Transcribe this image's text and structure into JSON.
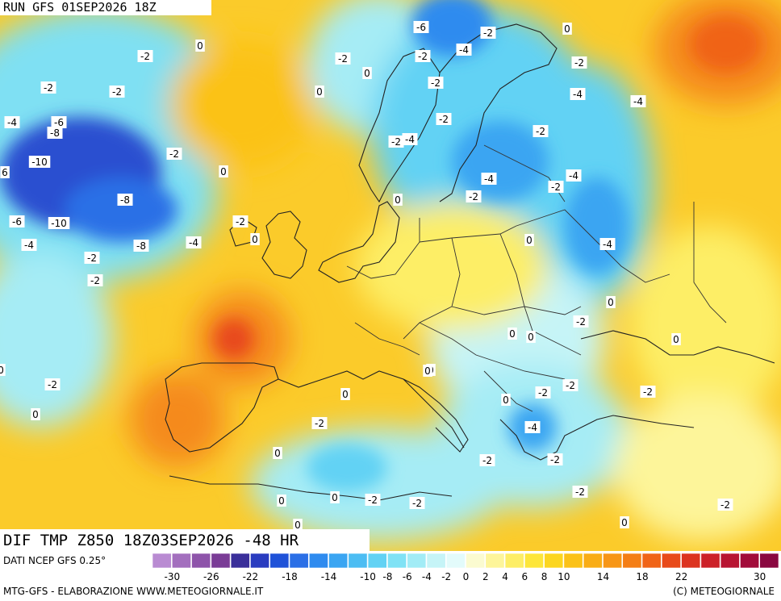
{
  "header": {
    "run": "RUN GFS 01SEP2026 18Z",
    "field": "DIF TMP Z850 18Z03SEP2026 -48 HR"
  },
  "footer": {
    "data_source": "DATI NCEP GFS 0.25°",
    "credits_left": "MTG-GFS - ELABORAZIONE WWW.METEOGIORNALE.IT",
    "credits_right": "(C) METEOGIORNALE"
  },
  "colorbar": {
    "tick_labels": [
      "-30",
      "-26",
      "-22",
      "-18",
      "-14",
      "-10",
      "-8",
      "-6",
      "-4",
      "-2",
      "0",
      "2",
      "4",
      "6",
      "8",
      "10",
      "14",
      "18",
      "22",
      "30"
    ],
    "colors": [
      "#b98bd2",
      "#a36fbe",
      "#8e54aa",
      "#7a3c96",
      "#3a2f9a",
      "#2a3cc0",
      "#1f52d8",
      "#2b6fe6",
      "#2f8bef",
      "#3aa5f2",
      "#4cbdf3",
      "#62d2f4",
      "#80e2f5",
      "#a2ecf6",
      "#c6f4f7",
      "#e3fbfb",
      "#fbfbd0",
      "#fdf59a",
      "#fdee66",
      "#fde63a",
      "#fcd61f",
      "#fbc218",
      "#f9ad16",
      "#f79616",
      "#f47e16",
      "#f06418",
      "#e84a1a",
      "#dc3420",
      "#cc2128",
      "#b81432",
      "#a20c3a",
      "#8a0840"
    ]
  },
  "map_labels": [
    "-6",
    "-2",
    "0",
    "-2",
    "-4",
    "-2",
    "-2",
    "0",
    "-2",
    "0",
    "-2",
    "-4",
    "-2",
    "-4",
    "0",
    "-2",
    "-2",
    "-4",
    "-6",
    "-8",
    "-2",
    "-2",
    "-10",
    "-4",
    "-2",
    "6",
    "0",
    "-4",
    "-8",
    "0",
    "-2",
    "-4",
    "-2",
    "-6",
    "-10",
    "-2",
    "0",
    "-4",
    "-8",
    "-4",
    "-4",
    "-2",
    "-2",
    "0",
    "0",
    "-2",
    "0",
    "0",
    "0",
    "-2",
    "0",
    "-2",
    "0",
    "-2",
    "-2",
    "0",
    "0",
    "-2",
    "-4",
    "-2",
    "-2",
    "-2",
    "0",
    "0",
    "0",
    "-2",
    "-2",
    "0",
    "0",
    "-2",
    "0",
    "0"
  ]
}
